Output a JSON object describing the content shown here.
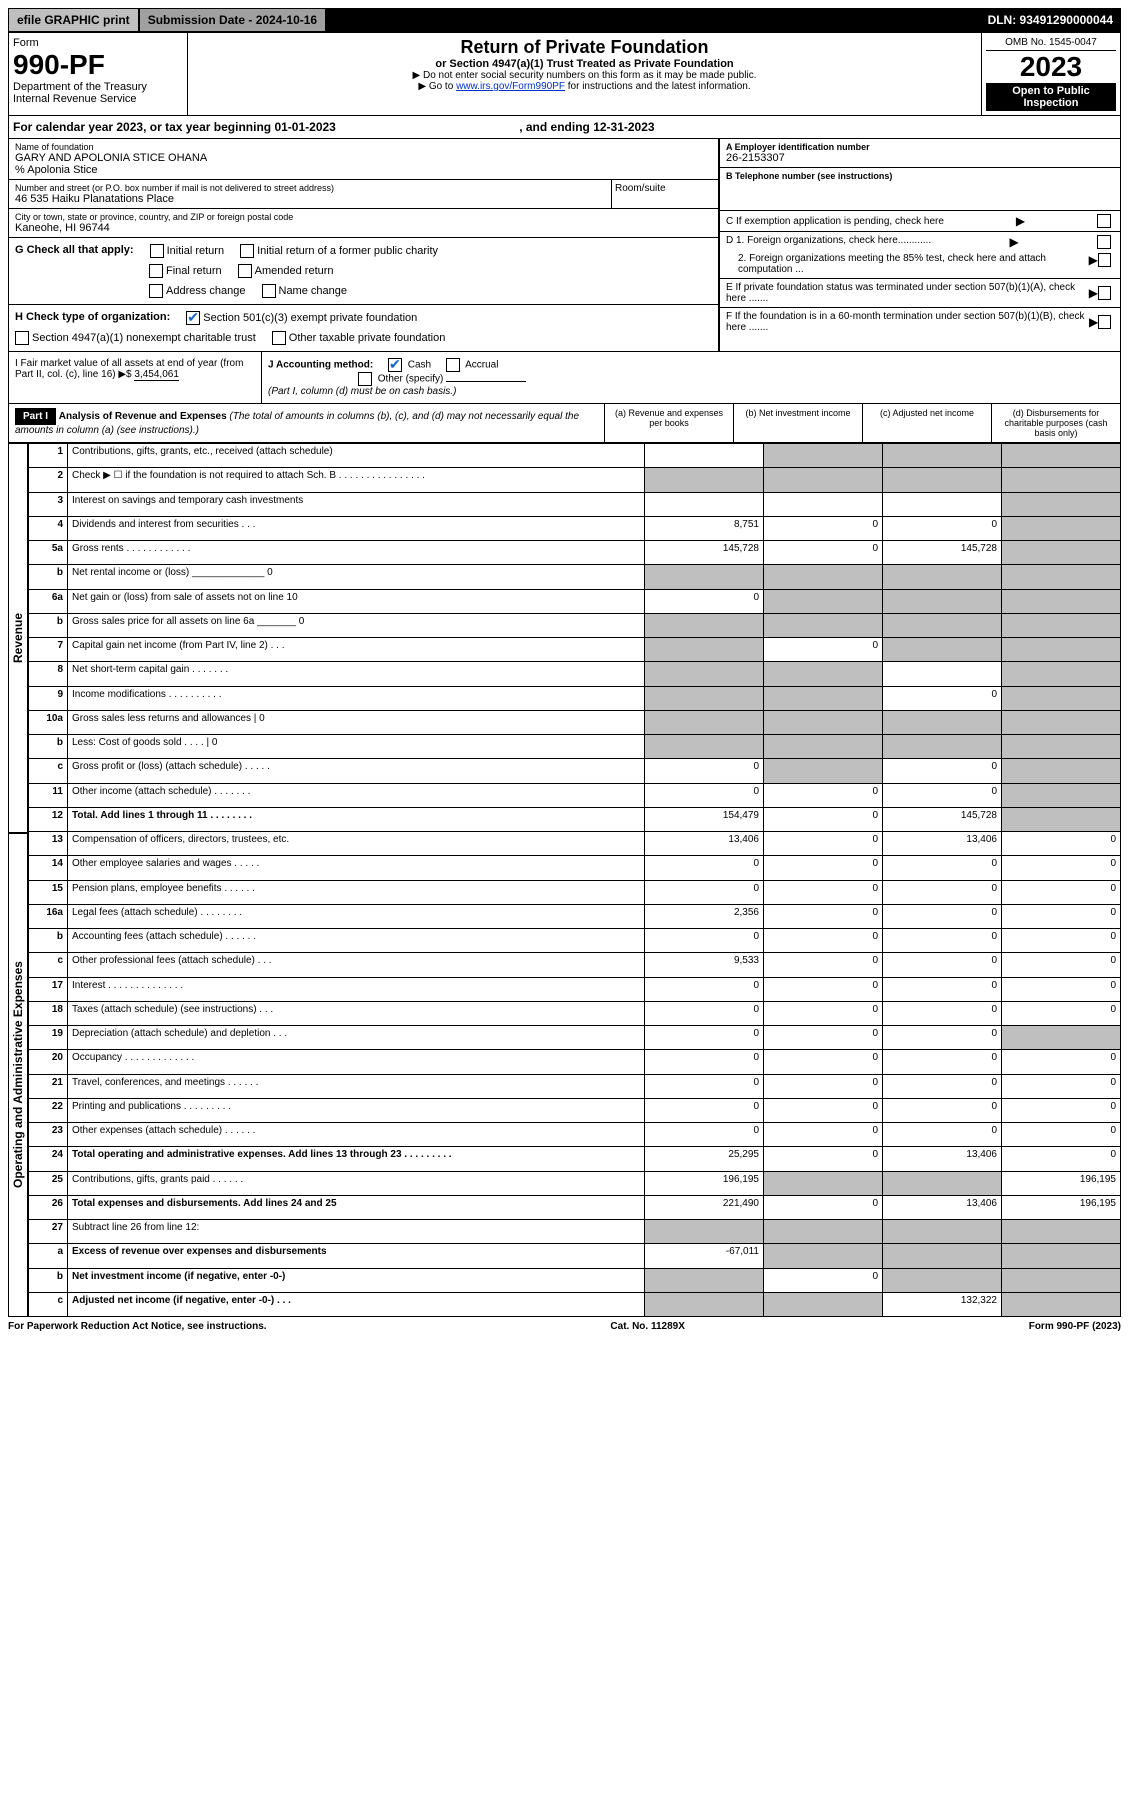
{
  "top": {
    "efile": "efile GRAPHIC print",
    "submission": "Submission Date - 2024-10-16",
    "dln": "DLN: 93491290000044"
  },
  "header": {
    "form_label": "Form",
    "form_num": "990-PF",
    "dept": "Department of the Treasury",
    "irs": "Internal Revenue Service",
    "title": "Return of Private Foundation",
    "subtitle": "or Section 4947(a)(1) Trust Treated as Private Foundation",
    "instr1": "▶ Do not enter social security numbers on this form as it may be made public.",
    "instr2_pre": "▶ Go to ",
    "instr2_link": "www.irs.gov/Form990PF",
    "instr2_post": " for instructions and the latest information.",
    "omb": "OMB No. 1545-0047",
    "year": "2023",
    "open": "Open to Public Inspection"
  },
  "period": {
    "text_pre": "For calendar year 2023, or tax year beginning ",
    "begin": "01-01-2023",
    "mid": " , and ending ",
    "end": "12-31-2023"
  },
  "entity": {
    "name_label": "Name of foundation",
    "name": "GARY AND APOLONIA STICE OHANA",
    "care_of": "% Apolonia Stice",
    "addr_label": "Number and street (or P.O. box number if mail is not delivered to street address)",
    "addr": "46 535 Haiku Planatations Place",
    "room_label": "Room/suite",
    "city_label": "City or town, state or province, country, and ZIP or foreign postal code",
    "city": "Kaneohe, HI  96744",
    "ein_label": "A Employer identification number",
    "ein": "26-2153307",
    "phone_label": "B Telephone number (see instructions)",
    "c_label": "C If exemption application is pending, check here",
    "d1": "D 1. Foreign organizations, check here............",
    "d2": "2. Foreign organizations meeting the 85% test, check here and attach computation ...",
    "e": "E  If private foundation status was terminated under section 507(b)(1)(A), check here .......",
    "f": "F  If the foundation is in a 60-month termination under section 507(b)(1)(B), check here ......."
  },
  "g": {
    "label": "G Check all that apply:",
    "initial": "Initial return",
    "initial_former": "Initial return of a former public charity",
    "final": "Final return",
    "amended": "Amended return",
    "address": "Address change",
    "name_change": "Name change"
  },
  "h": {
    "label": "H Check type of organization:",
    "opt1": "Section 501(c)(3) exempt private foundation",
    "opt2": "Section 4947(a)(1) nonexempt charitable trust",
    "opt3": "Other taxable private foundation"
  },
  "i": {
    "label": "I Fair market value of all assets at end of year (from Part II, col. (c), line 16) ▶$ ",
    "value": "3,454,061"
  },
  "j": {
    "label": "J Accounting method:",
    "cash": "Cash",
    "accrual": "Accrual",
    "other": "Other (specify)",
    "note": "(Part I, column (d) must be on cash basis.)"
  },
  "part1": {
    "label": "Part I",
    "title": "Analysis of Revenue and Expenses",
    "note": "(The total of amounts in columns (b), (c), and (d) may not necessarily equal the amounts in column (a) (see instructions).)",
    "col_a": "(a)  Revenue and expenses per books",
    "col_b": "(b)  Net investment income",
    "col_c": "(c)  Adjusted net income",
    "col_d": "(d)  Disbursements for charitable purposes (cash basis only)"
  },
  "side": {
    "revenue": "Revenue",
    "expenses": "Operating and Administrative Expenses"
  },
  "rows": [
    {
      "n": "1",
      "d": "Contributions, gifts, grants, etc., received (attach schedule)",
      "a": "",
      "b": "s",
      "c": "s",
      "e": "s"
    },
    {
      "n": "2",
      "d": "Check ▶ ☐ if the foundation is not required to attach Sch. B   .   .   .   .   .   .   .   .   .   .   .   .   .   .   .   .",
      "a": "s",
      "b": "s",
      "c": "s",
      "e": "s"
    },
    {
      "n": "3",
      "d": "Interest on savings and temporary cash investments",
      "a": "",
      "b": "",
      "c": "",
      "e": "s"
    },
    {
      "n": "4",
      "d": "Dividends and interest from securities   .   .   .",
      "a": "8,751",
      "b": "0",
      "c": "0",
      "e": "s"
    },
    {
      "n": "5a",
      "d": "Gross rents   .   .   .   .   .   .   .   .   .   .   .   .",
      "a": "145,728",
      "b": "0",
      "c": "145,728",
      "e": "s"
    },
    {
      "n": "b",
      "d": "Net rental income or (loss)  _____________ 0",
      "a": "s",
      "b": "s",
      "c": "s",
      "e": "s"
    },
    {
      "n": "6a",
      "d": "Net gain or (loss) from sale of assets not on line 10",
      "a": "0",
      "b": "s",
      "c": "s",
      "e": "s"
    },
    {
      "n": "b",
      "d": "Gross sales price for all assets on line 6a _______ 0",
      "a": "s",
      "b": "s",
      "c": "s",
      "e": "s"
    },
    {
      "n": "7",
      "d": "Capital gain net income (from Part IV, line 2)   .   .   .",
      "a": "s",
      "b": "0",
      "c": "s",
      "e": "s"
    },
    {
      "n": "8",
      "d": "Net short-term capital gain   .   .   .   .   .   .   .",
      "a": "s",
      "b": "s",
      "c": "",
      "e": "s"
    },
    {
      "n": "9",
      "d": "Income modifications  .   .   .   .   .   .   .   .   .   .",
      "a": "s",
      "b": "s",
      "c": "0",
      "e": "s"
    },
    {
      "n": "10a",
      "d": "Gross sales less returns and allowances | 0",
      "a": "s",
      "b": "s",
      "c": "s",
      "e": "s"
    },
    {
      "n": "b",
      "d": "Less: Cost of goods sold   .   .   .   .   | 0",
      "a": "s",
      "b": "s",
      "c": "s",
      "e": "s"
    },
    {
      "n": "c",
      "d": "Gross profit or (loss) (attach schedule)   .   .   .   .   .",
      "a": "0",
      "b": "s",
      "c": "0",
      "e": "s"
    },
    {
      "n": "11",
      "d": "Other income (attach schedule)   .   .   .   .   .   .   .",
      "a": "0",
      "b": "0",
      "c": "0",
      "e": "s"
    },
    {
      "n": "12",
      "d": "Total. Add lines 1 through 11   .   .   .   .   .   .   .   .",
      "a": "154,479",
      "b": "0",
      "c": "145,728",
      "e": "s",
      "bold": true
    },
    {
      "n": "13",
      "d": "Compensation of officers, directors, trustees, etc.",
      "a": "13,406",
      "b": "0",
      "c": "13,406",
      "e": "0"
    },
    {
      "n": "14",
      "d": "Other employee salaries and wages   .   .   .   .   .",
      "a": "0",
      "b": "0",
      "c": "0",
      "e": "0"
    },
    {
      "n": "15",
      "d": "Pension plans, employee benefits  .   .   .   .   .   .",
      "a": "0",
      "b": "0",
      "c": "0",
      "e": "0"
    },
    {
      "n": "16a",
      "d": "Legal fees (attach schedule)  .   .   .   .   .   .   .   .",
      "a": "2,356",
      "b": "0",
      "c": "0",
      "e": "0"
    },
    {
      "n": "b",
      "d": "Accounting fees (attach schedule)  .   .   .   .   .   .",
      "a": "0",
      "b": "0",
      "c": "0",
      "e": "0"
    },
    {
      "n": "c",
      "d": "Other professional fees (attach schedule)   .   .   .",
      "a": "9,533",
      "b": "0",
      "c": "0",
      "e": "0"
    },
    {
      "n": "17",
      "d": "Interest  .   .   .   .   .   .   .   .   .   .   .   .   .   .",
      "a": "0",
      "b": "0",
      "c": "0",
      "e": "0"
    },
    {
      "n": "18",
      "d": "Taxes (attach schedule) (see instructions)   .   .   .",
      "a": "0",
      "b": "0",
      "c": "0",
      "e": "0"
    },
    {
      "n": "19",
      "d": "Depreciation (attach schedule) and depletion   .   .   .",
      "a": "0",
      "b": "0",
      "c": "0",
      "e": "s"
    },
    {
      "n": "20",
      "d": "Occupancy  .   .   .   .   .   .   .   .   .   .   .   .   .",
      "a": "0",
      "b": "0",
      "c": "0",
      "e": "0"
    },
    {
      "n": "21",
      "d": "Travel, conferences, and meetings  .   .   .   .   .   .",
      "a": "0",
      "b": "0",
      "c": "0",
      "e": "0"
    },
    {
      "n": "22",
      "d": "Printing and publications  .   .   .   .   .   .   .   .   .",
      "a": "0",
      "b": "0",
      "c": "0",
      "e": "0"
    },
    {
      "n": "23",
      "d": "Other expenses (attach schedule)  .   .   .   .   .   .",
      "a": "0",
      "b": "0",
      "c": "0",
      "e": "0"
    },
    {
      "n": "24",
      "d": "Total operating and administrative expenses. Add lines 13 through 23   .   .   .   .   .   .   .   .   .",
      "a": "25,295",
      "b": "0",
      "c": "13,406",
      "e": "0",
      "bold": true
    },
    {
      "n": "25",
      "d": "Contributions, gifts, grants paid   .   .   .   .   .   .",
      "a": "196,195",
      "b": "s",
      "c": "s",
      "e": "196,195"
    },
    {
      "n": "26",
      "d": "Total expenses and disbursements. Add lines 24 and 25",
      "a": "221,490",
      "b": "0",
      "c": "13,406",
      "e": "196,195",
      "bold": true
    },
    {
      "n": "27",
      "d": "Subtract line 26 from line 12:",
      "a": "s",
      "b": "s",
      "c": "s",
      "e": "s"
    },
    {
      "n": "a",
      "d": "Excess of revenue over expenses and disbursements",
      "a": "-67,011",
      "b": "s",
      "c": "s",
      "e": "s",
      "bold": true
    },
    {
      "n": "b",
      "d": "Net investment income (if negative, enter -0-)",
      "a": "s",
      "b": "0",
      "c": "s",
      "e": "s",
      "bold": true
    },
    {
      "n": "c",
      "d": "Adjusted net income (if negative, enter -0-)   .   .   .",
      "a": "s",
      "b": "s",
      "c": "132,322",
      "e": "s",
      "bold": true
    }
  ],
  "footer": {
    "left": "For Paperwork Reduction Act Notice, see instructions.",
    "center": "Cat. No. 11289X",
    "right": "Form 990-PF (2023)"
  }
}
